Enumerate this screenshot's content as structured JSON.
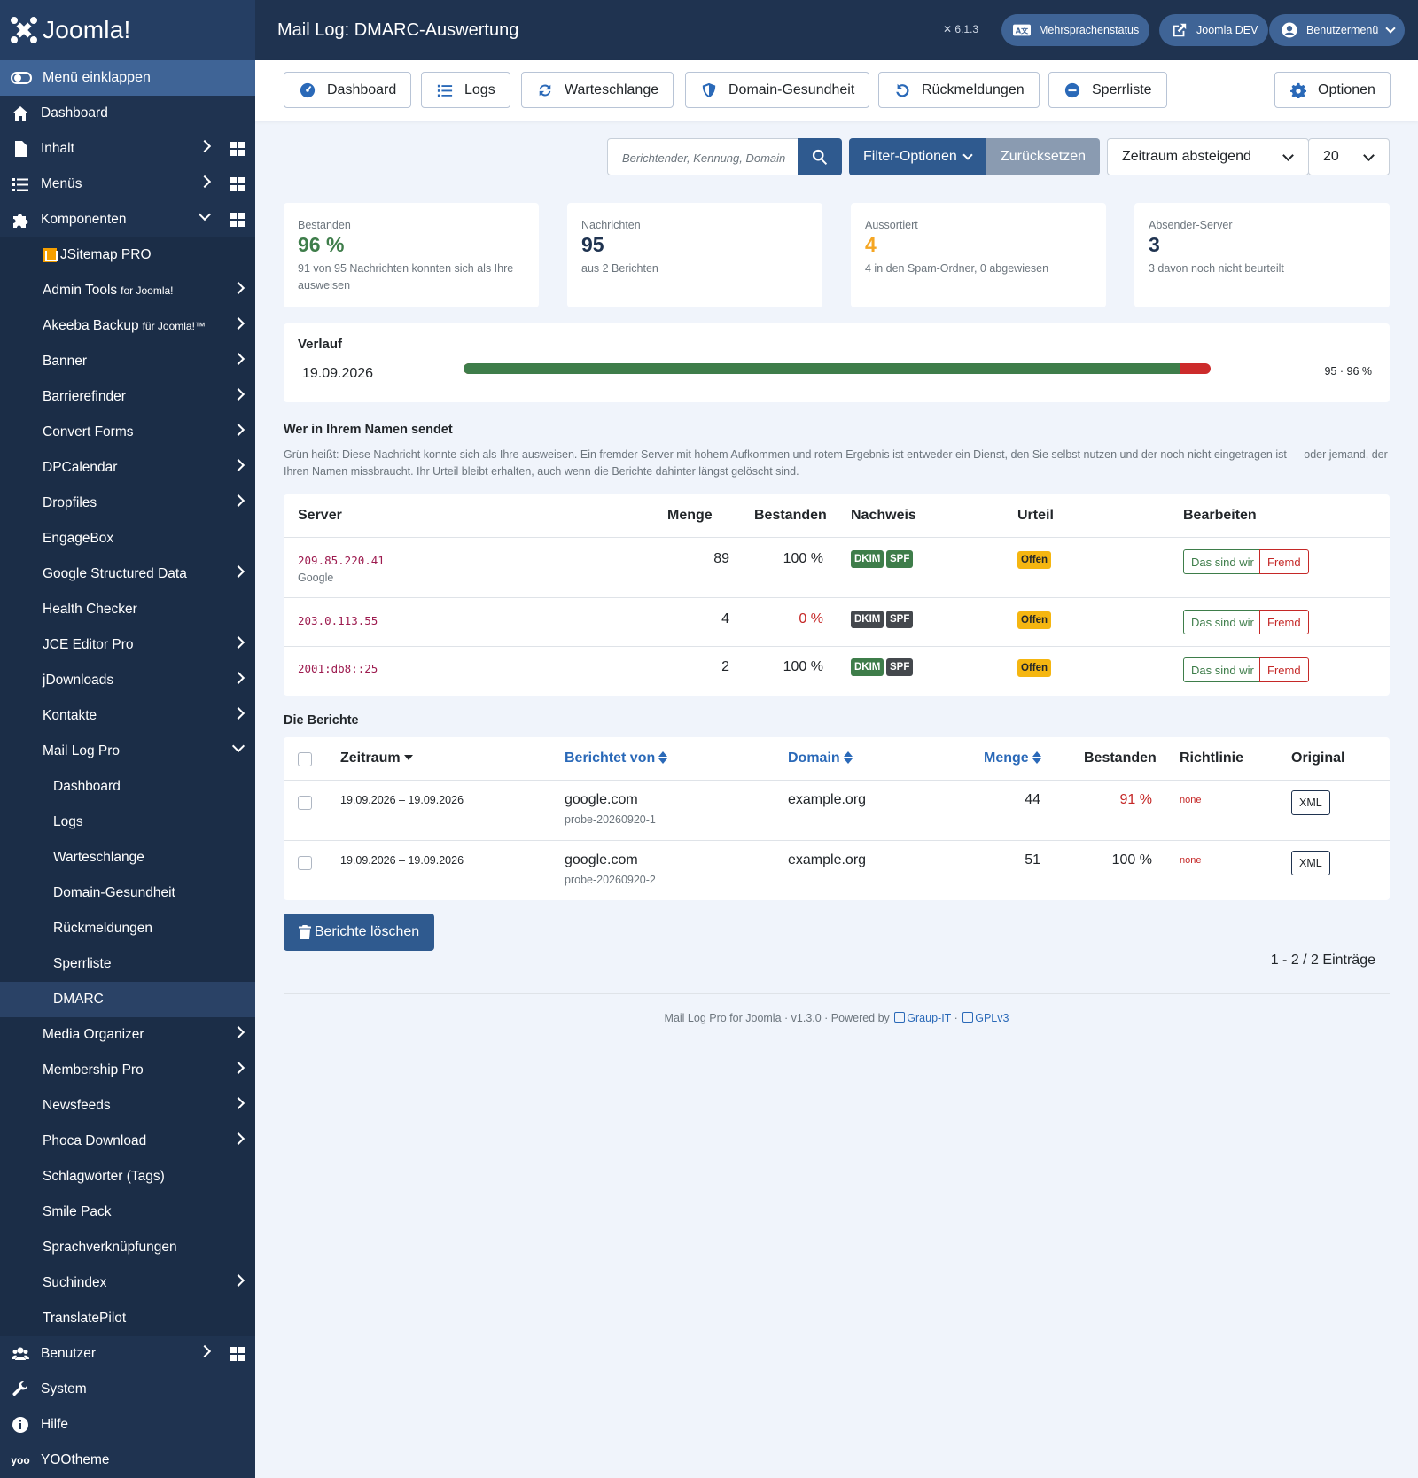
{
  "brand": {
    "name": "Joomla!"
  },
  "sidebar": {
    "collapse_label": "Menü einklappen",
    "items": [
      {
        "label": "Dashboard"
      },
      {
        "label": "Inhalt"
      },
      {
        "label": "Menüs"
      },
      {
        "label": "Komponenten"
      },
      {
        "label": "JSitemap PRO"
      },
      {
        "label": "Admin Tools",
        "small": "for Joomla!"
      },
      {
        "label": "Akeeba Backup",
        "small": "für Joomla!™"
      },
      {
        "label": "Banner"
      },
      {
        "label": "Barrierefinder"
      },
      {
        "label": "Convert Forms"
      },
      {
        "label": "DPCalendar"
      },
      {
        "label": "Dropfiles"
      },
      {
        "label": "EngageBox"
      },
      {
        "label": "Google Structured Data"
      },
      {
        "label": "Health Checker"
      },
      {
        "label": "JCE Editor Pro"
      },
      {
        "label": "jDownloads"
      },
      {
        "label": "Kontakte"
      },
      {
        "label": "Mail Log Pro"
      },
      {
        "label": "Dashboard"
      },
      {
        "label": "Logs"
      },
      {
        "label": "Warteschlange"
      },
      {
        "label": "Domain-Gesundheit"
      },
      {
        "label": "Rückmeldungen"
      },
      {
        "label": "Sperrliste"
      },
      {
        "label": "DMARC"
      },
      {
        "label": "Media Organizer"
      },
      {
        "label": "Membership Pro"
      },
      {
        "label": "Newsfeeds"
      },
      {
        "label": "Phoca Download"
      },
      {
        "label": "Schlagwörter (Tags)"
      },
      {
        "label": "Smile Pack"
      },
      {
        "label": "Sprachverknüpfungen"
      },
      {
        "label": "Suchindex"
      },
      {
        "label": "TranslatePilot"
      },
      {
        "label": "Benutzer"
      },
      {
        "label": "System"
      },
      {
        "label": "Hilfe"
      },
      {
        "label": "YOOtheme"
      }
    ]
  },
  "header": {
    "title": "Mail Log: DMARC-Auswertung",
    "version": "6.1.3",
    "multilang": "Mehrsprachenstatus",
    "site": "Joomla DEV",
    "user_menu": "Benutzermenü"
  },
  "toolbar": {
    "dashboard": "Dashboard",
    "logs": "Logs",
    "queue": "Warteschlange",
    "domain_health": "Domain-Gesundheit",
    "feedback": "Rückmeldungen",
    "blocklist": "Sperrliste",
    "options": "Optionen"
  },
  "filters": {
    "search_placeholder": "Berichtender, Kennung, Domain",
    "filter_options": "Filter-Optionen",
    "reset": "Zurücksetzen",
    "ordering": "Zeitraum absteigend",
    "limit": "20"
  },
  "stats": [
    {
      "label": "Bestanden",
      "value": "96 %",
      "desc": "91 von 95 Nachrichten konnten sich als Ihre ausweisen",
      "color": "#3e7d4a"
    },
    {
      "label": "Nachrichten",
      "value": "95",
      "desc": "aus 2 Berichten",
      "color": "#1f3350"
    },
    {
      "label": "Aussortiert",
      "value": "4",
      "desc": "4 in den Spam-Ordner, 0 abgewiesen",
      "color": "#f5a623"
    },
    {
      "label": "Absender-Server",
      "value": "3",
      "desc": "3 davon noch nicht beurteilt",
      "color": "#1f3350"
    }
  ],
  "verlauf": {
    "title": "Verlauf",
    "date": "19.09.2026",
    "pass_fraction": 0.96,
    "summary": "95 · 96 %"
  },
  "senders": {
    "title": "Wer in Ihrem Namen sendet",
    "desc": "Grün heißt: Diese Nachricht konnte sich als Ihre ausweisen. Ein fremder Server mit hohem Aufkommen und rotem Ergebnis ist entweder ein Dienst, den Sie selbst nutzen und der noch nicht eingetragen ist — oder jemand, der Ihren Namen missbraucht. Ihr Urteil bleibt erhalten, auch wenn die Berichte dahinter längst gelöscht sind.",
    "headers": {
      "server": "Server",
      "count": "Menge",
      "passed": "Bestanden",
      "proof": "Nachweis",
      "verdict": "Urteil",
      "edit": "Bearbeiten"
    },
    "rows": [
      {
        "ip": "209.85.220.41",
        "host": "Google",
        "count": "89",
        "passed": "100 %",
        "dkim": "DKIM",
        "spf": "SPF",
        "verdict": "Offen",
        "ours": "Das sind wir",
        "foreign": "Fremd"
      },
      {
        "ip": "203.0.113.55",
        "host": "",
        "count": "4",
        "passed": "0 %",
        "dkim": "DKIM",
        "spf": "SPF",
        "verdict": "Offen",
        "ours": "Das sind wir",
        "foreign": "Fremd"
      },
      {
        "ip": "2001:db8::25",
        "host": "",
        "count": "2",
        "passed": "100 %",
        "dkim": "DKIM",
        "spf": "SPF",
        "verdict": "Offen",
        "ours": "Das sind wir",
        "foreign": "Fremd"
      }
    ]
  },
  "reports": {
    "title": "Die Berichte",
    "headers": {
      "period": "Zeitraum",
      "reporter": "Berichtet von",
      "domain": "Domain",
      "count": "Menge",
      "passed": "Bestanden",
      "policy": "Richtlinie",
      "original": "Original"
    },
    "rows": [
      {
        "period": "19.09.2026 – 19.09.2026",
        "reporter": "google.com",
        "id": "probe-20260920-1",
        "domain": "example.org",
        "count": "44",
        "passed": "91 %",
        "policy": "none",
        "xml": "XML"
      },
      {
        "period": "19.09.2026 – 19.09.2026",
        "reporter": "google.com",
        "id": "probe-20260920-2",
        "domain": "example.org",
        "count": "51",
        "passed": "100 %",
        "policy": "none",
        "xml": "XML"
      }
    ],
    "delete_label": "Berichte löschen",
    "pagination": "1 - 2 / 2 Einträge"
  },
  "footer": {
    "text": "Mail Log Pro for Joomla · v1.3.0 · Powered by",
    "link1": "Graup-IT",
    "sep": "·",
    "link2": "GPLv3"
  }
}
